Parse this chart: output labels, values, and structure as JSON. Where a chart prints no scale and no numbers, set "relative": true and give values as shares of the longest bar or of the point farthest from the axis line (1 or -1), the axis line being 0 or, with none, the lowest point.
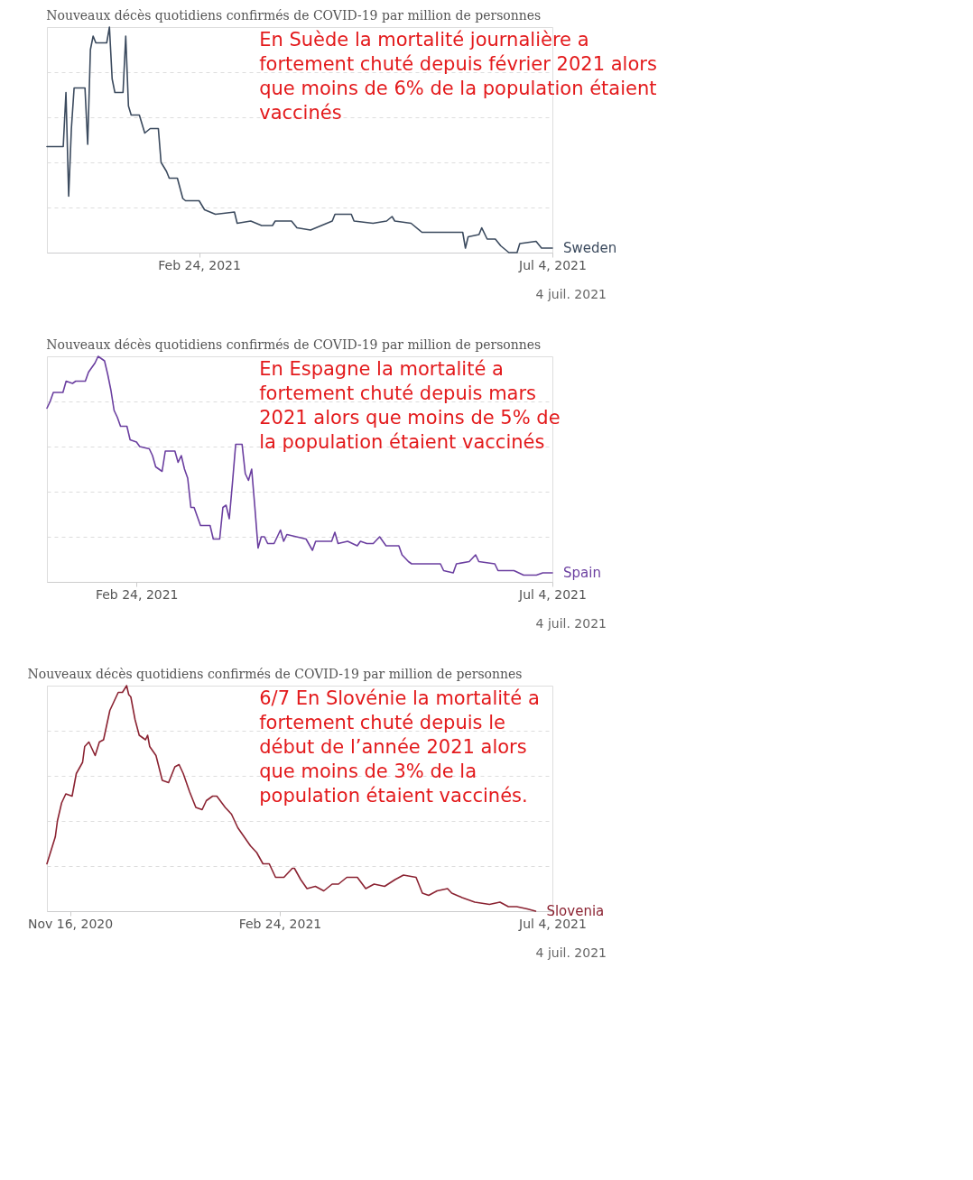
{
  "chart_data": [
    {
      "type": "line",
      "title": "Nouveaux décès quotidiens confirmés de COVID-19 par million de personnes",
      "relative": true,
      "grid": "y",
      "line_style": "solid",
      "xlim": [
        "2020-12-30",
        "2021-07-04"
      ],
      "xticks": [
        {
          "value": "2021-02-24",
          "label": "Feb 24, 2021"
        },
        {
          "value": "2021-07-04",
          "label": "Jul 4, 2021"
        }
      ],
      "annotations": [
        "En Suède la mortalité journalière a\nfortement chuté depuis février 2021 alors\nque moins de 6% de la population étaient\nvaccinés",
        "4 juil. 2021"
      ],
      "x": [
        "2020-12-30",
        "2021-01-05",
        "2021-01-06",
        "2021-01-07",
        "2021-01-08",
        "2021-01-09",
        "2021-01-13",
        "2021-01-14",
        "2021-01-15",
        "2021-01-16",
        "2021-01-17",
        "2021-01-21",
        "2021-01-22",
        "2021-01-23",
        "2021-01-24",
        "2021-01-27",
        "2021-01-28",
        "2021-01-29",
        "2021-01-30",
        "2021-02-02",
        "2021-02-04",
        "2021-02-06",
        "2021-02-09",
        "2021-02-10",
        "2021-02-12",
        "2021-02-13",
        "2021-02-16",
        "2021-02-18",
        "2021-02-19",
        "2021-02-24",
        "2021-02-26",
        "2021-03-02",
        "2021-03-09",
        "2021-03-10",
        "2021-03-15",
        "2021-03-19",
        "2021-03-23",
        "2021-03-24",
        "2021-03-30",
        "2021-04-01",
        "2021-04-06",
        "2021-04-08",
        "2021-04-14",
        "2021-04-15",
        "2021-04-21",
        "2021-04-22",
        "2021-04-29",
        "2021-05-04",
        "2021-05-06",
        "2021-05-07",
        "2021-05-13",
        "2021-05-17",
        "2021-05-24",
        "2021-06-01",
        "2021-06-02",
        "2021-06-03",
        "2021-06-07",
        "2021-06-08",
        "2021-06-10",
        "2021-06-13",
        "2021-06-15",
        "2021-06-18",
        "2021-06-21",
        "2021-06-22",
        "2021-06-28",
        "2021-06-30",
        "2021-07-04"
      ],
      "series": [
        {
          "name": "Sweden",
          "color": "#3b4a5e",
          "values": [
            0.47,
            0.47,
            0.71,
            0.25,
            0.55,
            0.73,
            0.73,
            0.48,
            0.9,
            0.96,
            0.93,
            0.93,
            1.0,
            0.77,
            0.71,
            0.71,
            0.96,
            0.65,
            0.61,
            0.61,
            0.53,
            0.55,
            0.55,
            0.4,
            0.36,
            0.33,
            0.33,
            0.24,
            0.23,
            0.23,
            0.19,
            0.17,
            0.18,
            0.13,
            0.14,
            0.12,
            0.12,
            0.14,
            0.14,
            0.11,
            0.1,
            0.11,
            0.14,
            0.17,
            0.17,
            0.14,
            0.13,
            0.14,
            0.16,
            0.14,
            0.13,
            0.09,
            0.09,
            0.09,
            0.02,
            0.07,
            0.08,
            0.11,
            0.06,
            0.06,
            0.03,
            0.0,
            0.0,
            0.04,
            0.05,
            0.02,
            0.02
          ]
        }
      ]
    },
    {
      "type": "line",
      "title": "Nouveaux décès quotidiens confirmés de COVID-19 par million de personnes",
      "relative": true,
      "grid": "y",
      "line_style": "solid",
      "xlim": [
        "2021-01-27",
        "2021-07-04"
      ],
      "xticks": [
        {
          "value": "2021-02-24",
          "label": "Feb 24, 2021"
        },
        {
          "value": "2021-07-04",
          "label": "Jul 4, 2021"
        }
      ],
      "annotations": [
        "En Espagne la mortalité a\nfortement chuté depuis mars\n2021 alors que moins de 5% de\nla population étaient vaccinés",
        "4 juil. 2021"
      ],
      "x": [
        "2021-01-27",
        "2021-01-28",
        "2021-01-29",
        "2021-02-01",
        "2021-02-02",
        "2021-02-04",
        "2021-02-05",
        "2021-02-08",
        "2021-02-09",
        "2021-02-11",
        "2021-02-12",
        "2021-02-14",
        "2021-02-15",
        "2021-02-16",
        "2021-02-17",
        "2021-02-18",
        "2021-02-19",
        "2021-02-21",
        "2021-02-22",
        "2021-02-24",
        "2021-02-25",
        "2021-02-28",
        "2021-03-01",
        "2021-03-02",
        "2021-03-04",
        "2021-03-05",
        "2021-03-08",
        "2021-03-09",
        "2021-03-10",
        "2021-03-11",
        "2021-03-12",
        "2021-03-13",
        "2021-03-14",
        "2021-03-15",
        "2021-03-16",
        "2021-03-19",
        "2021-03-20",
        "2021-03-22",
        "2021-03-23",
        "2021-03-24",
        "2021-03-25",
        "2021-03-26",
        "2021-03-27",
        "2021-03-29",
        "2021-03-30",
        "2021-03-31",
        "2021-04-01",
        "2021-04-02",
        "2021-04-03",
        "2021-04-04",
        "2021-04-05",
        "2021-04-06",
        "2021-04-08",
        "2021-04-10",
        "2021-04-11",
        "2021-04-12",
        "2021-04-15",
        "2021-04-18",
        "2021-04-20",
        "2021-04-21",
        "2021-04-26",
        "2021-04-27",
        "2021-04-28",
        "2021-05-01",
        "2021-05-04",
        "2021-05-05",
        "2021-05-07",
        "2021-05-09",
        "2021-05-11",
        "2021-05-13",
        "2021-05-17",
        "2021-05-18",
        "2021-05-20",
        "2021-05-21",
        "2021-05-30",
        "2021-05-31",
        "2021-06-03",
        "2021-06-04",
        "2021-06-08",
        "2021-06-10",
        "2021-06-11",
        "2021-06-16",
        "2021-06-17",
        "2021-06-22",
        "2021-06-25",
        "2021-06-29",
        "2021-07-01",
        "2021-07-04"
      ],
      "series": [
        {
          "name": "Spain",
          "color": "#6b3fa0",
          "values": [
            0.77,
            0.8,
            0.84,
            0.84,
            0.89,
            0.88,
            0.89,
            0.89,
            0.93,
            0.97,
            1.0,
            0.98,
            0.92,
            0.85,
            0.76,
            0.73,
            0.69,
            0.69,
            0.63,
            0.62,
            0.6,
            0.59,
            0.56,
            0.51,
            0.49,
            0.58,
            0.58,
            0.53,
            0.56,
            0.5,
            0.46,
            0.33,
            0.33,
            0.29,
            0.25,
            0.25,
            0.19,
            0.19,
            0.33,
            0.34,
            0.28,
            0.44,
            0.61,
            0.61,
            0.48,
            0.45,
            0.5,
            0.33,
            0.15,
            0.2,
            0.2,
            0.17,
            0.17,
            0.23,
            0.18,
            0.21,
            0.2,
            0.19,
            0.14,
            0.18,
            0.18,
            0.22,
            0.17,
            0.18,
            0.16,
            0.18,
            0.17,
            0.17,
            0.2,
            0.16,
            0.16,
            0.12,
            0.09,
            0.08,
            0.08,
            0.05,
            0.04,
            0.08,
            0.09,
            0.12,
            0.09,
            0.08,
            0.05,
            0.05,
            0.03,
            0.03,
            0.04,
            0.04
          ]
        }
      ]
    },
    {
      "type": "line",
      "title": "Nouveaux décès quotidiens confirmés de COVID-19 par million de personnes",
      "relative": true,
      "grid": "y",
      "line_style": "solid",
      "xlim": [
        "2020-11-05",
        "2021-07-04"
      ],
      "xticks": [
        {
          "value": "2020-11-16",
          "label": "Nov 16, 2020"
        },
        {
          "value": "2021-02-24",
          "label": "Feb 24, 2021"
        },
        {
          "value": "2021-07-04",
          "label": "Jul 4, 2021"
        }
      ],
      "annotations": [
        "6/7 En Slovénie la mortalité a\nfortement chuté depuis le\ndébut de l’année 2021 alors\nque moins de 3% de la\npopulation étaient vaccinés.",
        "4 juil. 2021"
      ],
      "x": [
        "2020-11-05",
        "2020-11-07",
        "2020-11-09",
        "2020-11-10",
        "2020-11-12",
        "2020-11-14",
        "2020-11-17",
        "2020-11-19",
        "2020-11-22",
        "2020-11-23",
        "2020-11-25",
        "2020-11-28",
        "2020-11-30",
        "2020-12-02",
        "2020-12-05",
        "2020-12-07",
        "2020-12-09",
        "2020-12-11",
        "2020-12-13",
        "2020-12-14",
        "2020-12-15",
        "2020-12-17",
        "2020-12-19",
        "2020-12-22",
        "2020-12-23",
        "2020-12-24",
        "2020-12-27",
        "2020-12-30",
        "2021-01-02",
        "2021-01-05",
        "2021-01-07",
        "2021-01-09",
        "2021-01-12",
        "2021-01-15",
        "2021-01-18",
        "2021-01-20",
        "2021-01-23",
        "2021-01-25",
        "2021-01-29",
        "2021-02-01",
        "2021-02-04",
        "2021-02-07",
        "2021-02-10",
        "2021-02-13",
        "2021-02-16",
        "2021-02-19",
        "2021-02-22",
        "2021-02-26",
        "2021-03-02",
        "2021-03-03",
        "2021-03-06",
        "2021-03-09",
        "2021-03-13",
        "2021-03-17",
        "2021-03-21",
        "2021-03-24",
        "2021-03-28",
        "2021-04-02",
        "2021-04-06",
        "2021-04-10",
        "2021-04-15",
        "2021-04-20",
        "2021-04-24",
        "2021-04-30",
        "2021-05-03",
        "2021-05-06",
        "2021-05-10",
        "2021-05-15",
        "2021-05-17",
        "2021-05-22",
        "2021-05-28",
        "2021-06-04",
        "2021-06-09",
        "2021-06-13",
        "2021-06-17",
        "2021-06-22",
        "2021-06-26"
      ],
      "series": [
        {
          "name": "Slovenia",
          "color": "#8b2332",
          "values": [
            0.21,
            0.27,
            0.33,
            0.4,
            0.48,
            0.52,
            0.51,
            0.61,
            0.66,
            0.73,
            0.75,
            0.69,
            0.75,
            0.76,
            0.89,
            0.93,
            0.97,
            0.97,
            1.0,
            0.96,
            0.95,
            0.85,
            0.78,
            0.76,
            0.78,
            0.73,
            0.69,
            0.58,
            0.57,
            0.64,
            0.65,
            0.61,
            0.53,
            0.46,
            0.45,
            0.49,
            0.51,
            0.51,
            0.46,
            0.43,
            0.37,
            0.33,
            0.29,
            0.26,
            0.21,
            0.21,
            0.15,
            0.15,
            0.19,
            0.19,
            0.14,
            0.1,
            0.11,
            0.09,
            0.12,
            0.12,
            0.15,
            0.15,
            0.1,
            0.12,
            0.11,
            0.14,
            0.16,
            0.15,
            0.08,
            0.07,
            0.09,
            0.1,
            0.08,
            0.06,
            0.04,
            0.03,
            0.04,
            0.02,
            0.02,
            0.01,
            0.0
          ]
        }
      ]
    }
  ]
}
